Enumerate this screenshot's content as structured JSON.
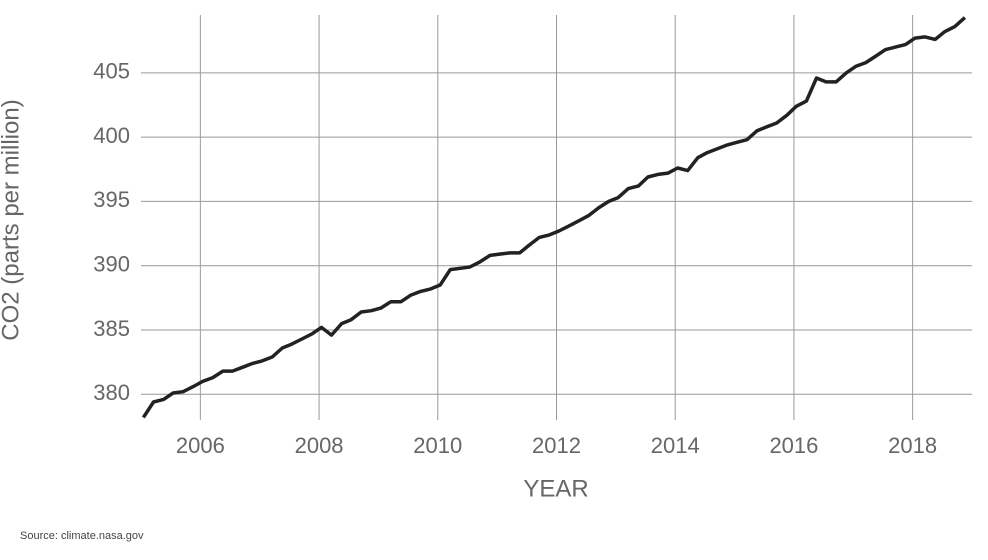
{
  "chart_data": {
    "type": "line",
    "y_label": "CO2 (parts per million)",
    "x_label": "YEAR",
    "source": "Source: climate.nasa.gov",
    "color": "#222222",
    "grid": true,
    "xlim": [
      2005,
      2019
    ],
    "xticks": [
      2006,
      2008,
      2010,
      2012,
      2014,
      2016,
      2018
    ],
    "ylim": [
      378,
      409.5
    ],
    "yticks": [
      380,
      385,
      390,
      395,
      400,
      405
    ],
    "x": [
      2005.04,
      2005.21,
      2005.38,
      2005.54,
      2005.71,
      2005.88,
      2006.04,
      2006.21,
      2006.38,
      2006.54,
      2006.71,
      2006.88,
      2007.04,
      2007.21,
      2007.38,
      2007.54,
      2007.71,
      2007.88,
      2008.04,
      2008.21,
      2008.38,
      2008.54,
      2008.71,
      2008.88,
      2009.04,
      2009.21,
      2009.38,
      2009.54,
      2009.71,
      2009.88,
      2010.04,
      2010.21,
      2010.38,
      2010.54,
      2010.71,
      2010.88,
      2011.04,
      2011.21,
      2011.38,
      2011.54,
      2011.71,
      2011.88,
      2012.04,
      2012.21,
      2012.38,
      2012.54,
      2012.71,
      2012.88,
      2013.04,
      2013.21,
      2013.38,
      2013.54,
      2013.71,
      2013.88,
      2014.04,
      2014.21,
      2014.38,
      2014.54,
      2014.71,
      2014.88,
      2015.04,
      2015.21,
      2015.38,
      2015.54,
      2015.71,
      2015.88,
      2016.04,
      2016.21,
      2016.38,
      2016.54,
      2016.71,
      2016.88,
      2017.04,
      2017.21,
      2017.38,
      2017.54,
      2017.71,
      2017.88,
      2018.04,
      2018.21,
      2018.38,
      2018.54,
      2018.71,
      2018.88
    ],
    "values": [
      378.2,
      379.4,
      379.6,
      380.1,
      380.2,
      380.6,
      381.0,
      381.3,
      381.8,
      381.8,
      382.1,
      382.4,
      382.6,
      382.9,
      383.6,
      383.9,
      384.3,
      384.7,
      385.2,
      384.6,
      385.5,
      385.8,
      386.4,
      386.5,
      386.7,
      387.2,
      387.2,
      387.7,
      388.0,
      388.2,
      388.5,
      389.7,
      389.8,
      389.9,
      390.3,
      390.8,
      390.9,
      391.0,
      391.0,
      391.6,
      392.2,
      392.4,
      392.7,
      393.1,
      393.5,
      393.9,
      394.5,
      395.0,
      395.3,
      396.0,
      396.2,
      396.9,
      397.1,
      397.2,
      397.6,
      397.4,
      398.4,
      398.8,
      399.1,
      399.4,
      399.6,
      399.8,
      400.5,
      400.8,
      401.1,
      401.7,
      402.4,
      402.8,
      404.6,
      404.3,
      404.3,
      405.0,
      405.5,
      405.8,
      406.3,
      406.8,
      407.0,
      407.2,
      407.7,
      407.8,
      407.6,
      408.2,
      408.6,
      409.3
    ]
  }
}
